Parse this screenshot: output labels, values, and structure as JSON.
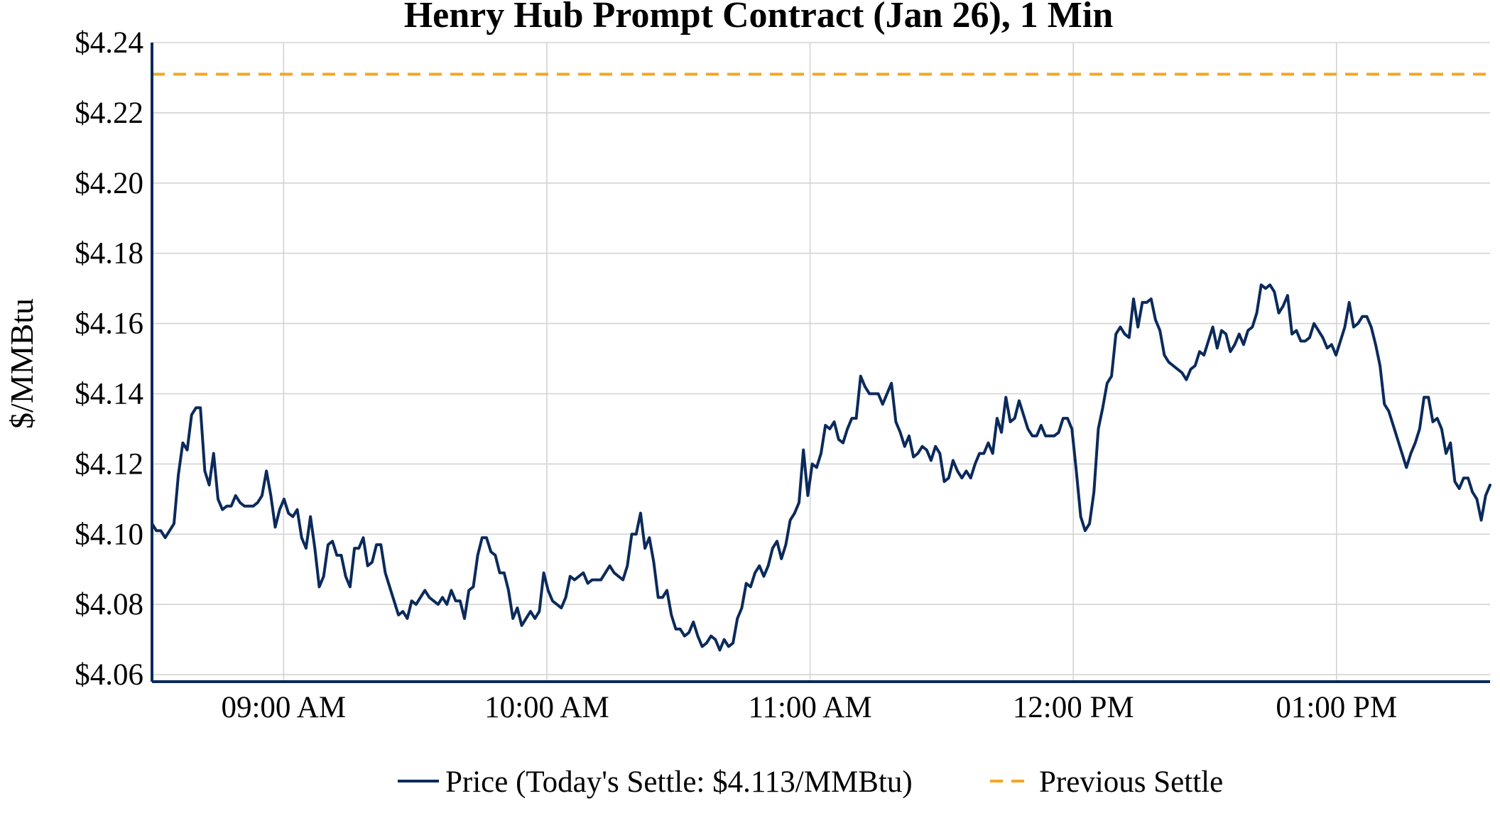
{
  "chart_data": {
    "type": "line",
    "title": "Henry Hub Prompt Contract (Jan 26), 1 Min",
    "ylabel": "$/MMBtu",
    "xlabel": "",
    "ylim": [
      4.058,
      4.24
    ],
    "x_range_minutes_after_0830": [
      0,
      305
    ],
    "y_ticks": [
      4.06,
      4.08,
      4.1,
      4.12,
      4.14,
      4.16,
      4.18,
      4.2,
      4.22,
      4.24
    ],
    "y_tick_labels": [
      "$4.06",
      "$4.08",
      "$4.10",
      "$4.12",
      "$4.14",
      "$4.16",
      "$4.18",
      "$4.20",
      "$4.22",
      "$4.24"
    ],
    "x_ticks": [
      "09:00 AM",
      "10:00 AM",
      "11:00 AM",
      "12:00 PM",
      "01:00 PM"
    ],
    "grid": true,
    "legend_position": "bottom-center",
    "colors": {
      "price": "#0b2a5b",
      "previous_settle": "#f5a623",
      "axis": "#0b2a5b",
      "grid": "#d3d3d3"
    },
    "series": [
      {
        "name": "Price (Today's Settle: $4.113/MMBtu)",
        "style": "solid",
        "values": [
          4.103,
          4.101,
          4.101,
          4.099,
          4.101,
          4.103,
          4.117,
          4.126,
          4.124,
          4.134,
          4.136,
          4.136,
          4.118,
          4.114,
          4.123,
          4.11,
          4.107,
          4.108,
          4.108,
          4.111,
          4.109,
          4.108,
          4.108,
          4.108,
          4.109,
          4.111,
          4.118,
          4.111,
          4.102,
          4.107,
          4.11,
          4.106,
          4.105,
          4.107,
          4.099,
          4.096,
          4.105,
          4.096,
          4.085,
          4.088,
          4.097,
          4.098,
          4.094,
          4.094,
          4.088,
          4.085,
          4.096,
          4.096,
          4.099,
          4.091,
          4.092,
          4.097,
          4.097,
          4.089,
          4.085,
          4.081,
          4.077,
          4.078,
          4.076,
          4.081,
          4.08,
          4.082,
          4.084,
          4.082,
          4.081,
          4.08,
          4.082,
          4.08,
          4.084,
          4.081,
          4.081,
          4.076,
          4.084,
          4.085,
          4.094,
          4.099,
          4.099,
          4.095,
          4.094,
          4.089,
          4.089,
          4.084,
          4.076,
          4.079,
          4.074,
          4.076,
          4.078,
          4.076,
          4.078,
          4.089,
          4.084,
          4.081,
          4.08,
          4.079,
          4.082,
          4.088,
          4.087,
          4.088,
          4.089,
          4.086,
          4.087,
          4.087,
          4.087,
          4.089,
          4.091,
          4.089,
          4.088,
          4.087,
          4.091,
          4.1,
          4.1,
          4.106,
          4.096,
          4.099,
          4.092,
          4.082,
          4.082,
          4.084,
          4.077,
          4.073,
          4.073,
          4.071,
          4.072,
          4.075,
          4.071,
          4.068,
          4.069,
          4.071,
          4.07,
          4.067,
          4.07,
          4.068,
          4.069,
          4.076,
          4.079,
          4.086,
          4.085,
          4.089,
          4.091,
          4.088,
          4.091,
          4.096,
          4.098,
          4.093,
          4.097,
          4.104,
          4.106,
          4.109,
          4.124,
          4.111,
          4.12,
          4.119,
          4.123,
          4.131,
          4.13,
          4.132,
          4.127,
          4.126,
          4.13,
          4.133,
          4.133,
          4.145,
          4.142,
          4.14,
          4.14,
          4.14,
          4.137,
          4.14,
          4.143,
          4.132,
          4.129,
          4.125,
          4.128,
          4.122,
          4.123,
          4.125,
          4.124,
          4.121,
          4.125,
          4.123,
          4.115,
          4.116,
          4.121,
          4.118,
          4.116,
          4.118,
          4.116,
          4.12,
          4.123,
          4.123,
          4.126,
          4.123,
          4.133,
          4.129,
          4.139,
          4.132,
          4.133,
          4.138,
          4.134,
          4.13,
          4.128,
          4.128,
          4.131,
          4.128,
          4.128,
          4.128,
          4.129,
          4.133,
          4.133,
          4.13,
          4.118,
          4.105,
          4.101,
          4.103,
          4.112,
          4.13,
          4.136,
          4.143,
          4.145,
          4.157,
          4.159,
          4.157,
          4.156,
          4.167,
          4.159,
          4.166,
          4.166,
          4.167,
          4.161,
          4.158,
          4.151,
          4.149,
          4.148,
          4.147,
          4.146,
          4.144,
          4.147,
          4.148,
          4.152,
          4.151,
          4.155,
          4.159,
          4.153,
          4.158,
          4.157,
          4.152,
          4.154,
          4.157,
          4.154,
          4.158,
          4.159,
          4.163,
          4.171,
          4.17,
          4.171,
          4.169,
          4.163,
          4.165,
          4.168,
          4.157,
          4.158,
          4.155,
          4.155,
          4.156,
          4.16,
          4.158,
          4.156,
          4.153,
          4.154,
          4.151,
          4.155,
          4.159,
          4.166,
          4.159,
          4.16,
          4.162,
          4.162,
          4.159,
          4.154,
          4.148,
          4.137,
          4.135,
          4.131,
          4.127,
          4.123,
          4.119,
          4.123,
          4.126,
          4.13,
          4.139,
          4.139,
          4.132,
          4.133,
          4.13,
          4.123,
          4.126,
          4.115,
          4.113,
          4.116,
          4.116,
          4.112,
          4.11,
          4.104,
          4.111,
          4.114
        ]
      },
      {
        "name": "Previous Settle",
        "style": "dashed",
        "value": 4.231
      }
    ]
  }
}
